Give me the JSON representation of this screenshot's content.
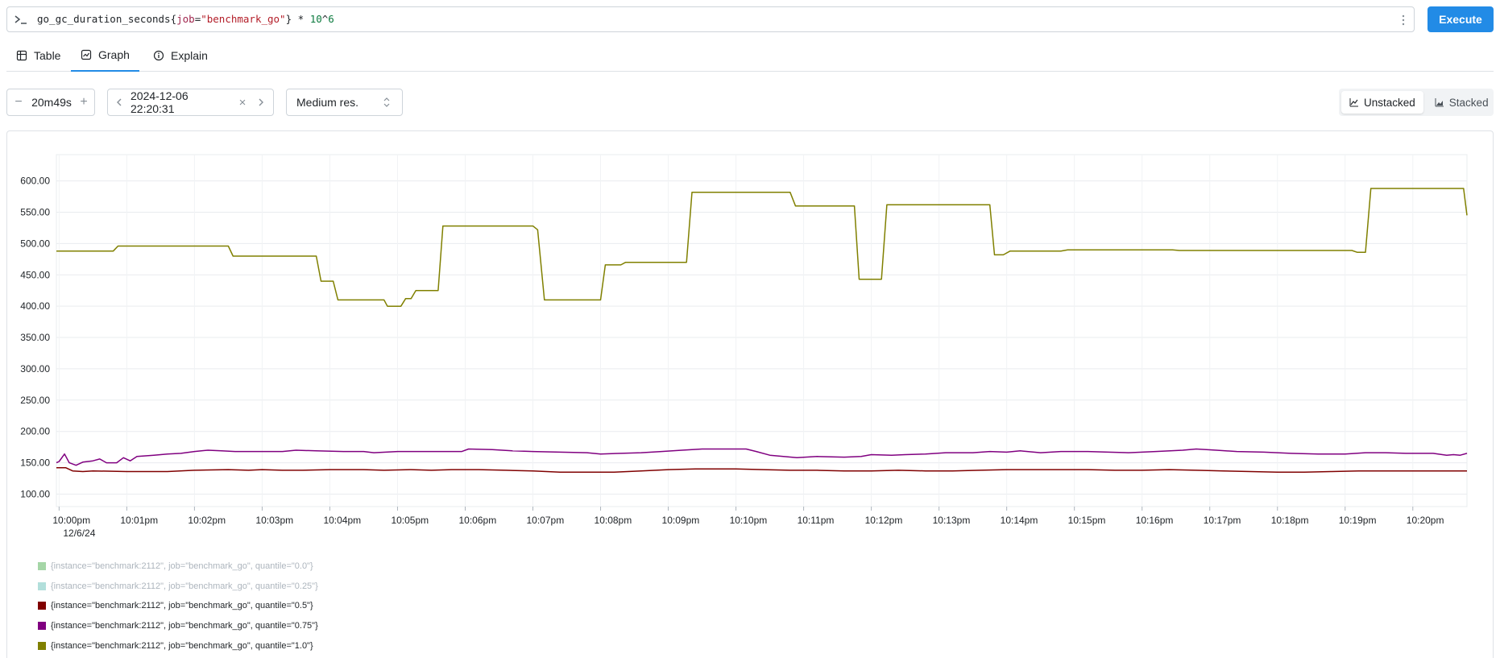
{
  "query": {
    "metric": "go_gc_duration_seconds",
    "label_key": "job",
    "label_value": "\"benchmark_go\"",
    "operator": " * ",
    "number_1": "10",
    "caret": "^",
    "number_2": "6",
    "execute_label": "Execute"
  },
  "tabs": [
    {
      "label": "Table",
      "icon": "table-icon"
    },
    {
      "label": "Graph",
      "icon": "graph-icon",
      "active": true
    },
    {
      "label": "Explain",
      "icon": "info-icon"
    }
  ],
  "controls": {
    "range": "20m49s",
    "range_decrease": "−",
    "range_increase": "+",
    "end_time": "2024-12-06 22:20:31",
    "end_clear": "×",
    "resolution": "Medium res.",
    "unstacked_label": "Unstacked",
    "stacked_label": "Stacked"
  },
  "chart_data": {
    "type": "line",
    "x_ticks": [
      "10:00pm",
      "10:01pm",
      "10:02pm",
      "10:03pm",
      "10:04pm",
      "10:05pm",
      "10:06pm",
      "10:07pm",
      "10:08pm",
      "10:09pm",
      "10:10pm",
      "10:11pm",
      "10:12pm",
      "10:13pm",
      "10:14pm",
      "10:15pm",
      "10:16pm",
      "10:17pm",
      "10:18pm",
      "10:19pm",
      "10:20pm"
    ],
    "x_first_sublabel": "12/6/24",
    "y_ticks": [
      "100.00",
      "150.00",
      "200.00",
      "250.00",
      "300.00",
      "350.00",
      "400.00",
      "450.00",
      "500.00",
      "550.00",
      "600.00"
    ],
    "xlim": [
      -0.04,
      20.8
    ],
    "ylim": [
      80,
      642
    ],
    "grid": true,
    "series": [
      {
        "name": "{instance=\"benchmark:2112\", job=\"benchmark_go\", quantile=\"1.0\"}",
        "color": "#808000",
        "points": [
          [
            -0.04,
            488
          ],
          [
            0.8,
            488
          ],
          [
            0.87,
            496
          ],
          [
            2.5,
            496
          ],
          [
            2.57,
            480
          ],
          [
            3.8,
            480
          ],
          [
            3.87,
            440
          ],
          [
            4.05,
            440
          ],
          [
            4.12,
            410
          ],
          [
            4.8,
            410
          ],
          [
            4.85,
            400
          ],
          [
            5.05,
            400
          ],
          [
            5.12,
            412
          ],
          [
            5.2,
            412
          ],
          [
            5.27,
            425
          ],
          [
            5.6,
            425
          ],
          [
            5.67,
            528
          ],
          [
            7.0,
            528
          ],
          [
            7.07,
            522
          ],
          [
            7.17,
            410
          ],
          [
            8.0,
            410
          ],
          [
            8.07,
            466
          ],
          [
            8.3,
            466
          ],
          [
            8.37,
            470
          ],
          [
            9.27,
            470
          ],
          [
            9.35,
            582
          ],
          [
            10.8,
            582
          ],
          [
            10.88,
            560
          ],
          [
            11.75,
            560
          ],
          [
            11.82,
            443
          ],
          [
            12.15,
            443
          ],
          [
            12.23,
            562
          ],
          [
            13.75,
            562
          ],
          [
            13.82,
            482
          ],
          [
            13.95,
            482
          ],
          [
            14.05,
            488
          ],
          [
            14.8,
            488
          ],
          [
            14.9,
            490
          ],
          [
            16.45,
            490
          ],
          [
            16.55,
            489
          ],
          [
            19.1,
            489
          ],
          [
            19.18,
            486
          ],
          [
            19.3,
            486
          ],
          [
            19.38,
            588
          ],
          [
            20.75,
            588
          ],
          [
            20.8,
            545
          ]
        ]
      },
      {
        "name": "{instance=\"benchmark:2112\", job=\"benchmark_go\", quantile=\"0.75\"}",
        "color": "#800080",
        "points": [
          [
            -0.04,
            150
          ],
          [
            0.0,
            152
          ],
          [
            0.08,
            164
          ],
          [
            0.15,
            150
          ],
          [
            0.25,
            146
          ],
          [
            0.35,
            151
          ],
          [
            0.5,
            153
          ],
          [
            0.6,
            156
          ],
          [
            0.7,
            150
          ],
          [
            0.85,
            150
          ],
          [
            0.95,
            158
          ],
          [
            1.05,
            153
          ],
          [
            1.15,
            160
          ],
          [
            1.4,
            162
          ],
          [
            1.6,
            164
          ],
          [
            1.8,
            165
          ],
          [
            2.0,
            168
          ],
          [
            2.2,
            170
          ],
          [
            2.4,
            169
          ],
          [
            2.6,
            168
          ],
          [
            3.0,
            168
          ],
          [
            3.3,
            168
          ],
          [
            3.5,
            170
          ],
          [
            3.8,
            169
          ],
          [
            4.2,
            168
          ],
          [
            4.5,
            168
          ],
          [
            4.65,
            166
          ],
          [
            5.0,
            168
          ],
          [
            5.5,
            168
          ],
          [
            5.95,
            168
          ],
          [
            6.05,
            172
          ],
          [
            6.4,
            171
          ],
          [
            6.7,
            169
          ],
          [
            7.0,
            168
          ],
          [
            7.4,
            167
          ],
          [
            7.8,
            166
          ],
          [
            8.0,
            164
          ],
          [
            8.3,
            165
          ],
          [
            8.6,
            166
          ],
          [
            8.9,
            168
          ],
          [
            9.2,
            170
          ],
          [
            9.5,
            172
          ],
          [
            9.9,
            172
          ],
          [
            10.15,
            172
          ],
          [
            10.3,
            168
          ],
          [
            10.5,
            162
          ],
          [
            10.7,
            160
          ],
          [
            10.9,
            158
          ],
          [
            11.2,
            160
          ],
          [
            11.6,
            159
          ],
          [
            11.85,
            160
          ],
          [
            12.0,
            163
          ],
          [
            12.3,
            162
          ],
          [
            12.5,
            163
          ],
          [
            12.8,
            164
          ],
          [
            13.1,
            166
          ],
          [
            13.5,
            166
          ],
          [
            13.75,
            168
          ],
          [
            14.0,
            167
          ],
          [
            14.2,
            169
          ],
          [
            14.5,
            166
          ],
          [
            14.8,
            168
          ],
          [
            15.2,
            168
          ],
          [
            15.5,
            167
          ],
          [
            15.8,
            166
          ],
          [
            16.2,
            168
          ],
          [
            16.6,
            170
          ],
          [
            16.8,
            172
          ],
          [
            17.1,
            170
          ],
          [
            17.4,
            168
          ],
          [
            17.8,
            167
          ],
          [
            18.2,
            165
          ],
          [
            18.6,
            164
          ],
          [
            19.0,
            164
          ],
          [
            19.3,
            166
          ],
          [
            19.6,
            166
          ],
          [
            19.9,
            165
          ],
          [
            20.3,
            165
          ],
          [
            20.5,
            162
          ],
          [
            20.6,
            163
          ],
          [
            20.7,
            162
          ],
          [
            20.8,
            165
          ]
        ]
      },
      {
        "name": "{instance=\"benchmark:2112\", job=\"benchmark_go\", quantile=\"0.5\"}",
        "color": "#800000",
        "points": [
          [
            -0.04,
            142
          ],
          [
            0.1,
            142
          ],
          [
            0.2,
            137
          ],
          [
            0.35,
            136
          ],
          [
            0.5,
            137
          ],
          [
            1.0,
            136
          ],
          [
            1.3,
            136
          ],
          [
            1.6,
            136
          ],
          [
            2.0,
            138
          ],
          [
            2.5,
            139
          ],
          [
            2.8,
            138
          ],
          [
            3.0,
            139
          ],
          [
            3.3,
            138
          ],
          [
            3.6,
            138
          ],
          [
            4.0,
            139
          ],
          [
            4.5,
            139
          ],
          [
            4.8,
            138
          ],
          [
            5.2,
            139
          ],
          [
            5.5,
            138
          ],
          [
            5.8,
            139
          ],
          [
            6.2,
            139
          ],
          [
            6.6,
            138
          ],
          [
            7.0,
            137
          ],
          [
            7.4,
            135
          ],
          [
            7.8,
            135
          ],
          [
            8.2,
            135
          ],
          [
            8.6,
            137
          ],
          [
            9.0,
            139
          ],
          [
            9.4,
            140
          ],
          [
            10.0,
            140
          ],
          [
            10.4,
            139
          ],
          [
            10.8,
            138
          ],
          [
            11.2,
            138
          ],
          [
            11.6,
            137
          ],
          [
            12.0,
            137
          ],
          [
            12.4,
            138
          ],
          [
            12.8,
            137
          ],
          [
            13.2,
            137
          ],
          [
            13.6,
            138
          ],
          [
            14.0,
            139
          ],
          [
            14.4,
            139
          ],
          [
            14.8,
            139
          ],
          [
            15.2,
            139
          ],
          [
            15.6,
            138
          ],
          [
            16.0,
            138
          ],
          [
            16.4,
            139
          ],
          [
            16.8,
            138
          ],
          [
            17.2,
            137
          ],
          [
            17.6,
            136
          ],
          [
            18.0,
            135
          ],
          [
            18.4,
            135
          ],
          [
            18.8,
            136
          ],
          [
            19.2,
            137
          ],
          [
            19.8,
            137
          ],
          [
            20.8,
            137
          ]
        ]
      },
      {
        "name": "{instance=\"benchmark:2112\", job=\"benchmark_go\", quantile=\"0.25\"}",
        "color": "#b2dfdb",
        "hidden": true,
        "points": []
      },
      {
        "name": "{instance=\"benchmark:2112\", job=\"benchmark_go\", quantile=\"0.0\"}",
        "color": "#a5d6a7",
        "hidden": true,
        "points": []
      }
    ]
  },
  "legend": [
    {
      "text": "{instance=\"benchmark:2112\", job=\"benchmark_go\", quantile=\"0.0\"}",
      "color": "#a5d6a7",
      "muted": true
    },
    {
      "text": "{instance=\"benchmark:2112\", job=\"benchmark_go\", quantile=\"0.25\"}",
      "color": "#b2dfdb",
      "muted": true
    },
    {
      "text": "{instance=\"benchmark:2112\", job=\"benchmark_go\", quantile=\"0.5\"}",
      "color": "#800000",
      "muted": false
    },
    {
      "text": "{instance=\"benchmark:2112\", job=\"benchmark_go\", quantile=\"0.75\"}",
      "color": "#800080",
      "muted": false
    },
    {
      "text": "{instance=\"benchmark:2112\", job=\"benchmark_go\", quantile=\"1.0\"}",
      "color": "#808000",
      "muted": false
    }
  ]
}
